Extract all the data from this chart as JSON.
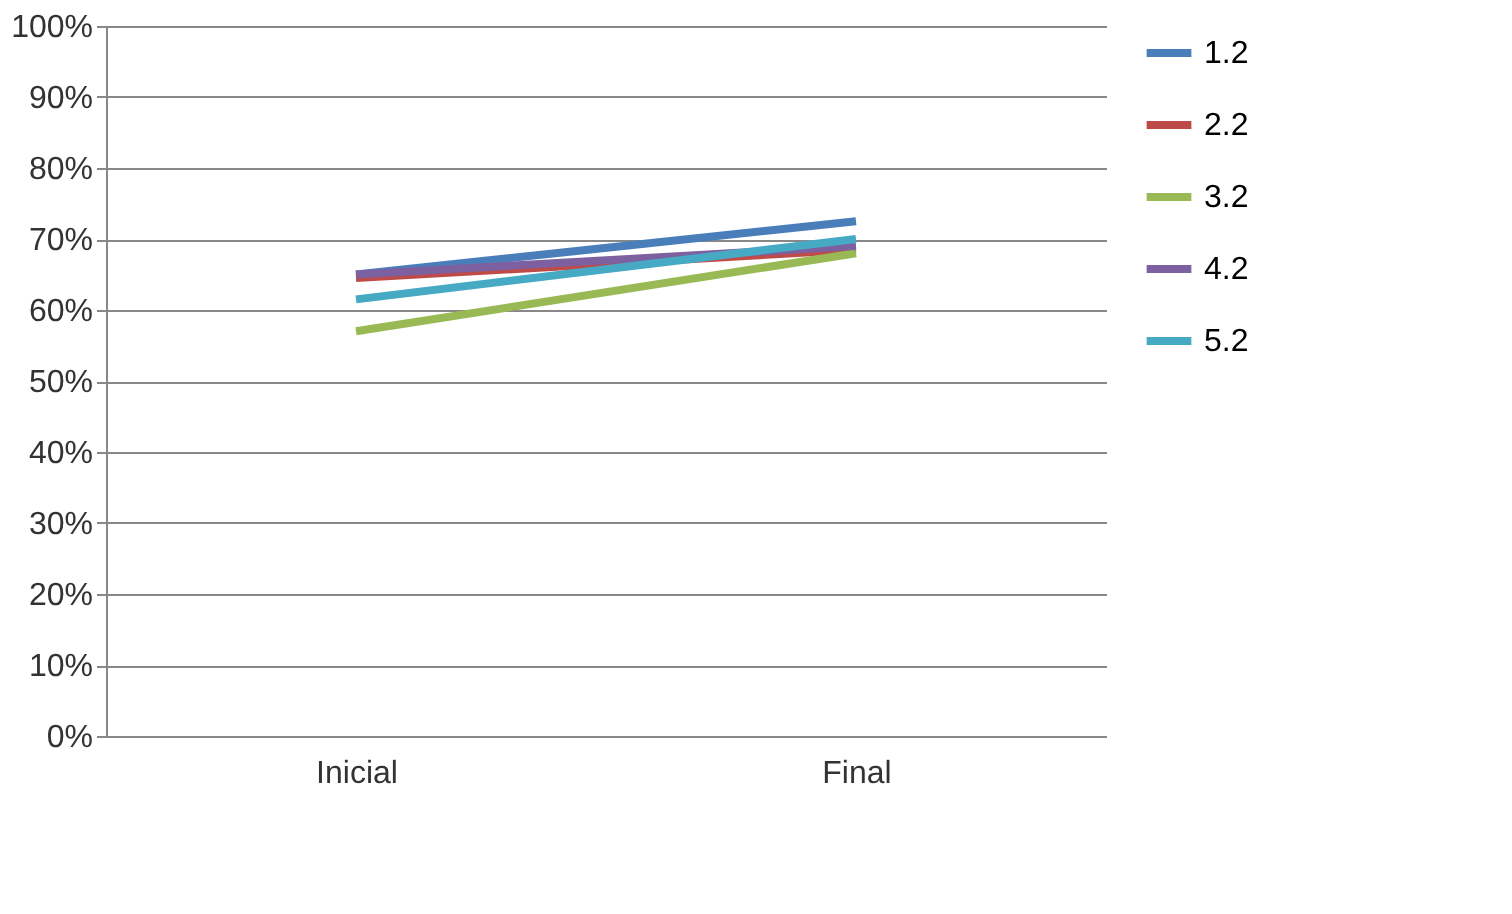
{
  "chart_data": {
    "type": "line",
    "categories": [
      "Inicial",
      "Final"
    ],
    "series": [
      {
        "name": "1.2",
        "color": "#4a7ebb",
        "values": [
          65,
          72.5
        ]
      },
      {
        "name": "2.2",
        "color": "#be4b48",
        "values": [
          64.5,
          68.5
        ]
      },
      {
        "name": "3.2",
        "color": "#98b954",
        "values": [
          57,
          68
        ]
      },
      {
        "name": "4.2",
        "color": "#7d60a0",
        "values": [
          65,
          69
        ]
      },
      {
        "name": "5.2",
        "color": "#46aac5",
        "values": [
          61.5,
          70
        ]
      }
    ],
    "ylim": [
      0,
      100
    ],
    "yticks": [
      {
        "value": 0,
        "label": "0%"
      },
      {
        "value": 10,
        "label": "10%"
      },
      {
        "value": 20,
        "label": "20%"
      },
      {
        "value": 30,
        "label": "30%"
      },
      {
        "value": 40,
        "label": "40%"
      },
      {
        "value": 50,
        "label": "50%"
      },
      {
        "value": 60,
        "label": "60%"
      },
      {
        "value": 70,
        "label": "70%"
      },
      {
        "value": 80,
        "label": "80%"
      },
      {
        "value": 90,
        "label": "90%"
      },
      {
        "value": 100,
        "label": "100%"
      }
    ],
    "grid": "y",
    "legend": "right",
    "marker": "none",
    "line_style": "solid"
  }
}
